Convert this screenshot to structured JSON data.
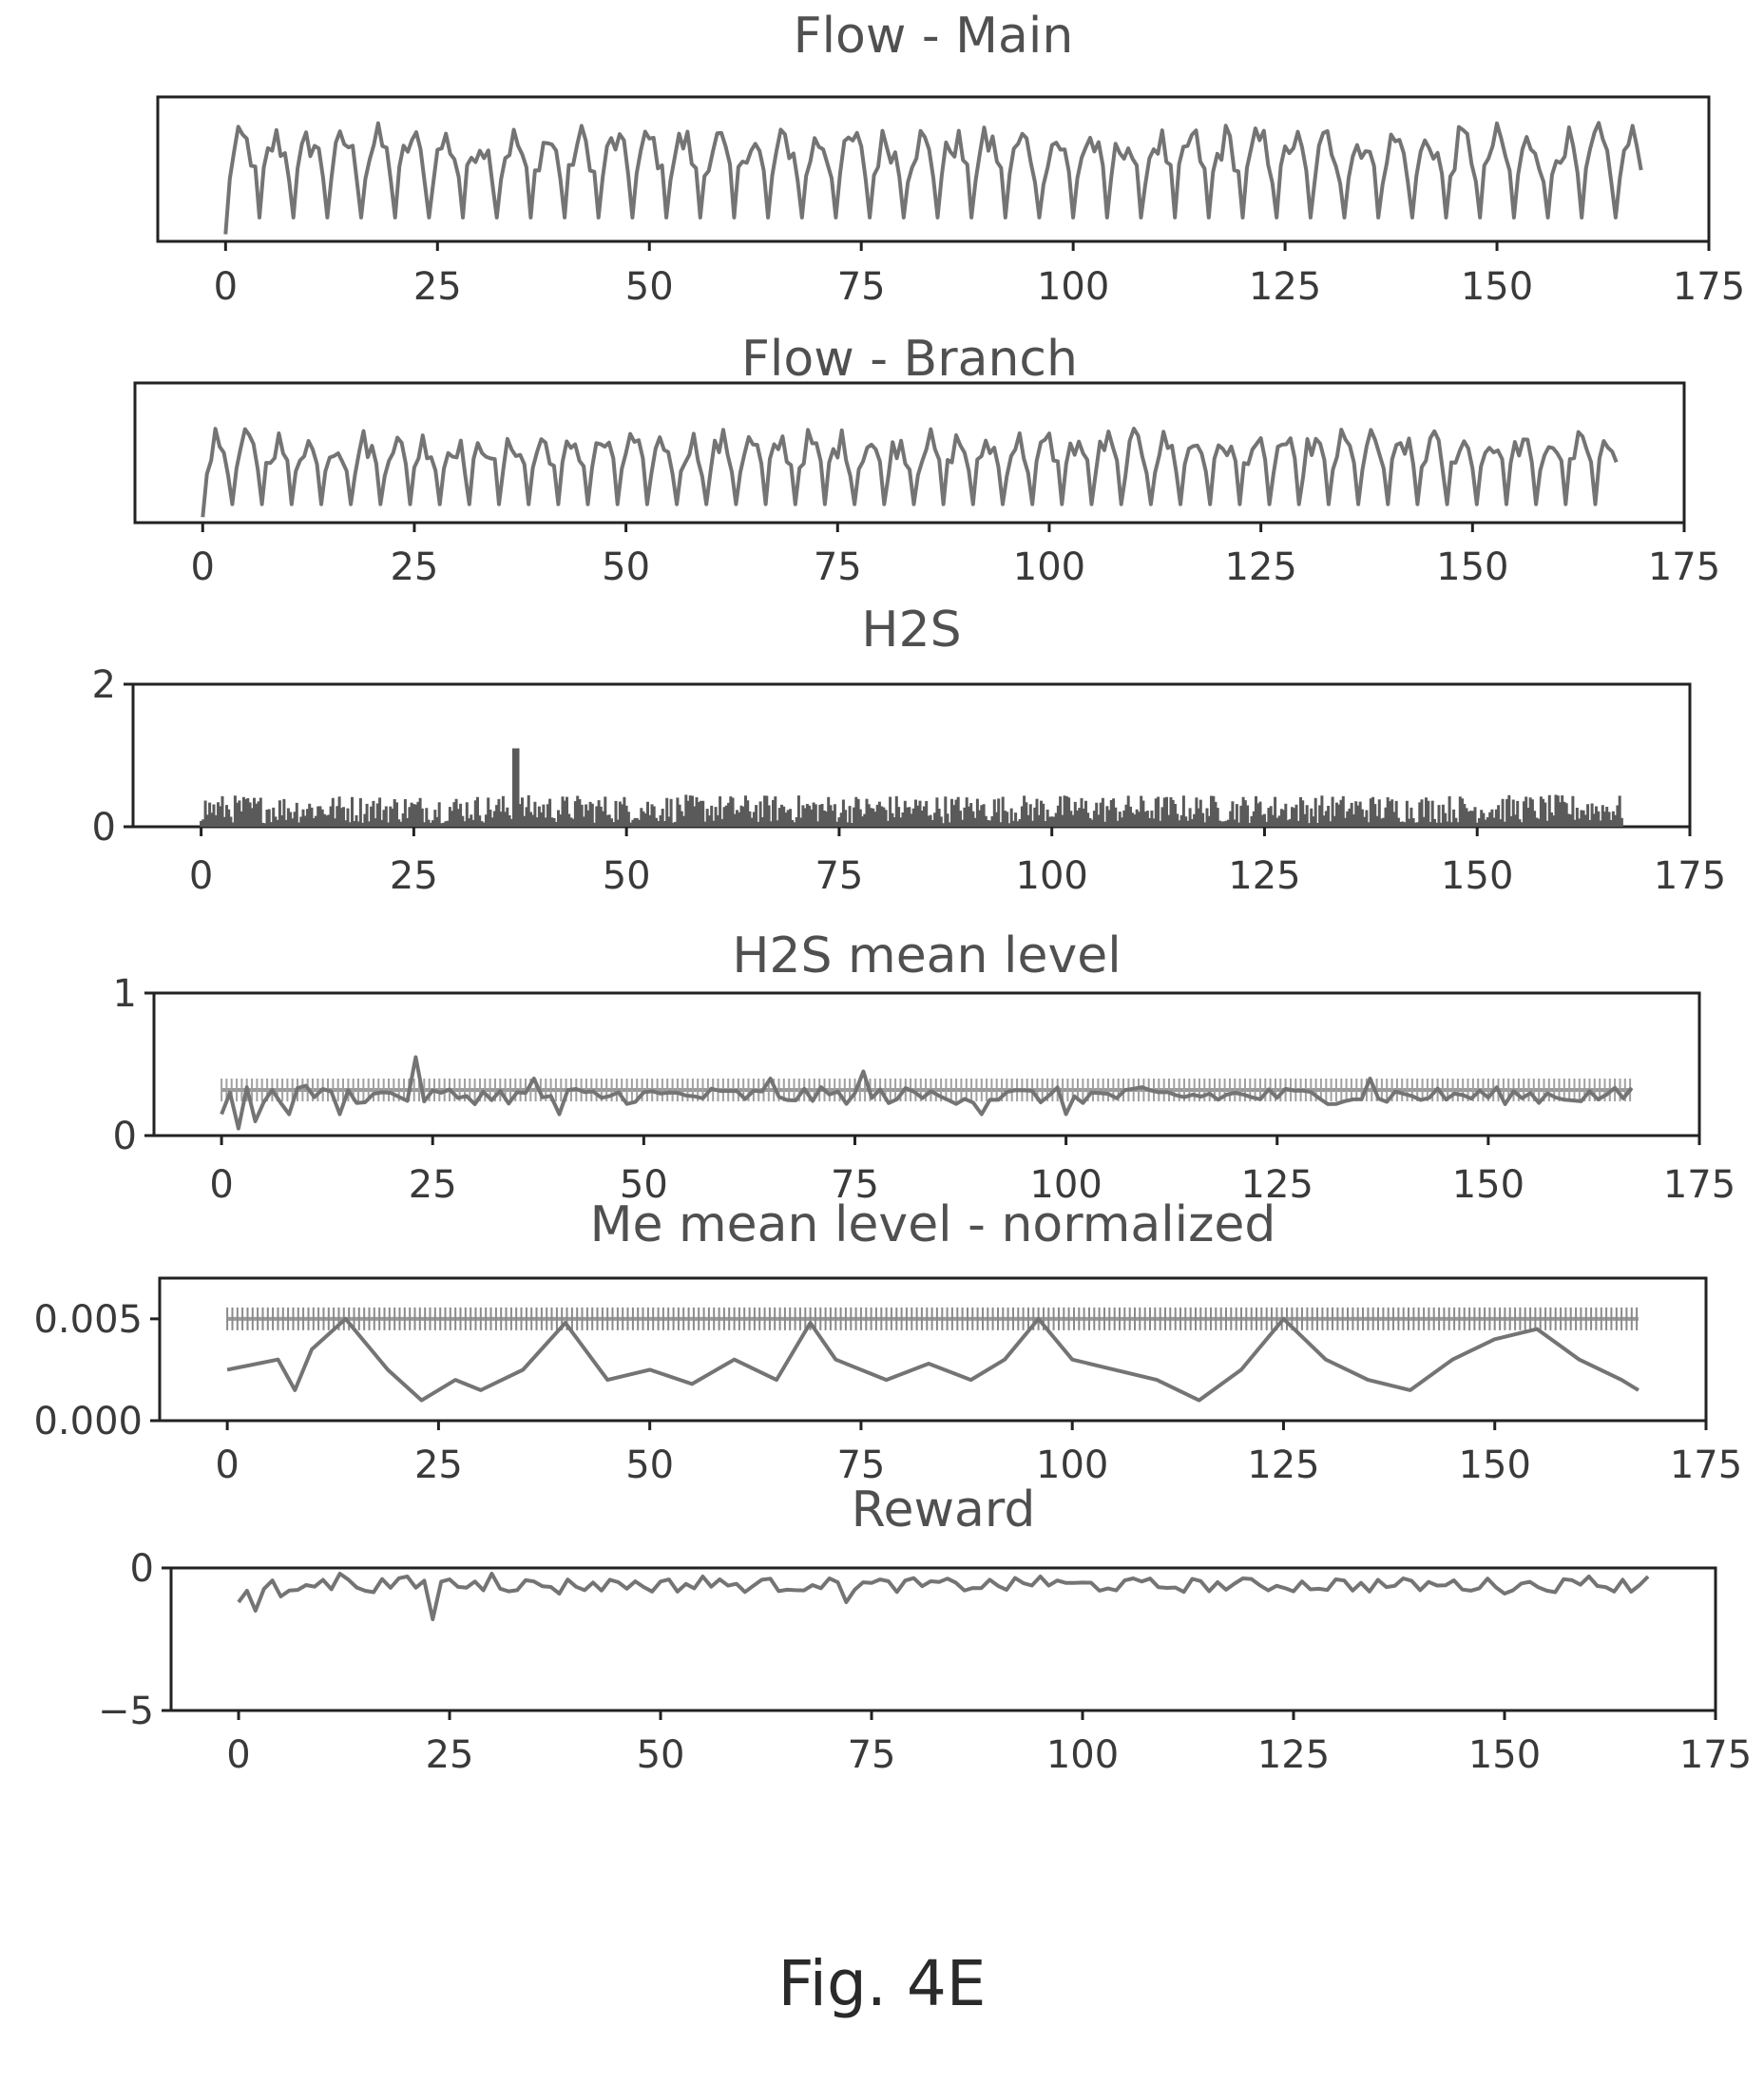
{
  "chart_data": [
    {
      "type": "line",
      "title": "Flow - Main",
      "xlim": [
        -8,
        175
      ],
      "xticks": [
        0,
        25,
        50,
        75,
        100,
        125,
        150,
        175
      ],
      "yticks": [],
      "series": [
        {
          "pattern": "daily-peaks",
          "x": [
            0,
            167
          ],
          "base": 0.15,
          "peak": 0.75,
          "period": 4,
          "color": "#747474"
        }
      ]
    },
    {
      "type": "line",
      "title": "Flow - Branch",
      "xlim": [
        -8,
        175
      ],
      "xticks": [
        0,
        25,
        50,
        75,
        100,
        125,
        150,
        175
      ],
      "yticks": [],
      "series": [
        {
          "pattern": "daily-peaks",
          "x": [
            0,
            167
          ],
          "base": 0.12,
          "peak": 0.62,
          "period": 3.5,
          "color": "#747474"
        }
      ]
    },
    {
      "type": "bar",
      "title": "H2S",
      "xlim": [
        -8,
        175
      ],
      "ylim": [
        0,
        2
      ],
      "xticks": [
        0,
        25,
        50,
        75,
        100,
        125,
        150,
        175
      ],
      "yticks": [
        0,
        2
      ],
      "series": [
        {
          "pattern": "noise",
          "x": [
            0,
            167
          ],
          "mean": 0.25,
          "spread": 0.2,
          "spike_x": 37,
          "spike_y": 1.1,
          "color": "#5a5a5a"
        }
      ]
    },
    {
      "type": "line",
      "title": "H2S mean level",
      "xlim": [
        -8,
        175
      ],
      "ylim": [
        0,
        1
      ],
      "xticks": [
        0,
        25,
        50,
        75,
        100,
        125,
        150,
        175
      ],
      "yticks": [
        0,
        1
      ],
      "series": [
        {
          "pattern": "level",
          "x": [
            0,
            167
          ],
          "level": 0.32,
          "color": "#a0a0a0"
        },
        {
          "pattern": "noisy-level",
          "x": [
            0,
            167
          ],
          "level": 0.28,
          "spread": 0.12,
          "color": "#6a6a6a",
          "points": [
            [
              0,
              0.15
            ],
            [
              2,
              0.05
            ],
            [
              4,
              0.1
            ],
            [
              8,
              0.15
            ],
            [
              10,
              0.35
            ],
            [
              14,
              0.15
            ],
            [
              20,
              0.3
            ],
            [
              23,
              0.55
            ],
            [
              26,
              0.3
            ],
            [
              37,
              0.4
            ],
            [
              40,
              0.15
            ],
            [
              65,
              0.4
            ],
            [
              76,
              0.45
            ],
            [
              90,
              0.15
            ],
            [
              100,
              0.15
            ],
            [
              136,
              0.4
            ]
          ]
        }
      ]
    },
    {
      "type": "line",
      "title": "Me mean level - normalized",
      "xlim": [
        -8,
        175
      ],
      "ylim": [
        0,
        0.007
      ],
      "xticks": [
        0,
        25,
        50,
        75,
        100,
        125,
        150,
        175
      ],
      "yticks": [
        "0.000",
        "0.005"
      ],
      "series": [
        {
          "pattern": "level",
          "x": [
            0,
            167
          ],
          "level": 0.005,
          "color": "#8a8a8a"
        },
        {
          "pattern": "points",
          "color": "#8a8a8a",
          "points": [
            [
              0,
              0.0025
            ],
            [
              6,
              0.003
            ],
            [
              8,
              0.0015
            ],
            [
              10,
              0.0035
            ],
            [
              14,
              0.005
            ],
            [
              19,
              0.0025
            ],
            [
              23,
              0.001
            ],
            [
              27,
              0.002
            ],
            [
              30,
              0.0015
            ],
            [
              35,
              0.0025
            ],
            [
              40,
              0.0048
            ],
            [
              45,
              0.002
            ],
            [
              50,
              0.0025
            ],
            [
              55,
              0.0018
            ],
            [
              60,
              0.003
            ],
            [
              65,
              0.002
            ],
            [
              69,
              0.0048
            ],
            [
              72,
              0.003
            ],
            [
              78,
              0.002
            ],
            [
              83,
              0.0028
            ],
            [
              88,
              0.002
            ],
            [
              92,
              0.003
            ],
            [
              96,
              0.005
            ],
            [
              100,
              0.003
            ],
            [
              105,
              0.0025
            ],
            [
              110,
              0.002
            ],
            [
              115,
              0.001
            ],
            [
              120,
              0.0025
            ],
            [
              125,
              0.005
            ],
            [
              130,
              0.003
            ],
            [
              135,
              0.002
            ],
            [
              140,
              0.0015
            ],
            [
              145,
              0.003
            ],
            [
              150,
              0.004
            ],
            [
              155,
              0.0045
            ],
            [
              160,
              0.003
            ],
            [
              165,
              0.002
            ],
            [
              167,
              0.0015
            ]
          ]
        }
      ]
    },
    {
      "type": "line",
      "title": "Reward",
      "xlim": [
        -8,
        175
      ],
      "ylim": [
        -5,
        0
      ],
      "xticks": [
        0,
        25,
        50,
        75,
        100,
        125,
        150,
        175
      ],
      "yticks": [
        "0",
        "−5"
      ],
      "series": [
        {
          "pattern": "noisy-level",
          "x": [
            0,
            167
          ],
          "level": -0.6,
          "spread": 0.5,
          "color": "#6a6a6a",
          "points": [
            [
              0,
              -1.2
            ],
            [
              1,
              -0.8
            ],
            [
              2,
              -1.5
            ],
            [
              5,
              -1.0
            ],
            [
              8,
              -0.6
            ],
            [
              12,
              -0.2
            ],
            [
              15,
              -0.8
            ],
            [
              20,
              -0.3
            ],
            [
              23,
              -1.8
            ],
            [
              25,
              -0.4
            ],
            [
              30,
              -0.2
            ],
            [
              38,
              -0.9
            ],
            [
              45,
              -0.5
            ],
            [
              55,
              -0.3
            ],
            [
              68,
              -0.6
            ],
            [
              72,
              -1.2
            ],
            [
              95,
              -0.3
            ],
            [
              110,
              -0.7
            ],
            [
              130,
              -0.4
            ],
            [
              150,
              -0.9
            ],
            [
              160,
              -0.3
            ],
            [
              167,
              -0.3
            ]
          ]
        }
      ]
    }
  ],
  "caption": "Fig. 4E"
}
